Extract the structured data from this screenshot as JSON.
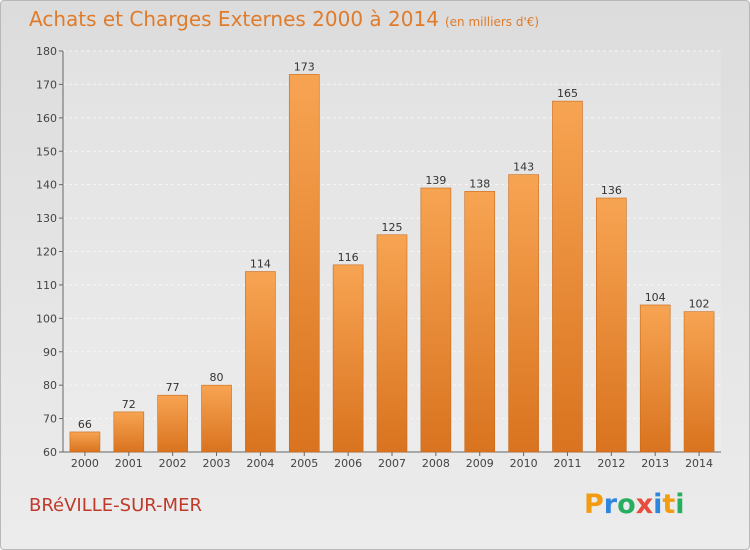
{
  "header": {
    "title": "Achats et Charges Externes 2000 à 2014",
    "subtitle": "(en milliers d'€)"
  },
  "footer": {
    "location": "BRéVILLE-SUR-MER",
    "brand": "Proxiti",
    "brand_letters": [
      {
        "ch": "P",
        "color": "#f39c12"
      },
      {
        "ch": "r",
        "color": "#2e86de"
      },
      {
        "ch": "o",
        "color": "#27ae60"
      },
      {
        "ch": "x",
        "color": "#e74c3c"
      },
      {
        "ch": "i",
        "color": "#2e86de"
      },
      {
        "ch": "t",
        "color": "#f39c12"
      },
      {
        "ch": "i",
        "color": "#27ae60"
      }
    ]
  },
  "chart_data": {
    "type": "bar",
    "title": "Achats et Charges Externes 2000 à 2014",
    "subtitle": "(en milliers d'€)",
    "categories": [
      "2000",
      "2001",
      "2002",
      "2003",
      "2004",
      "2005",
      "2006",
      "2007",
      "2008",
      "2009",
      "2010",
      "2011",
      "2012",
      "2013",
      "2014"
    ],
    "values": [
      66,
      72,
      77,
      80,
      114,
      173,
      116,
      125,
      139,
      138,
      143,
      165,
      136,
      104,
      102
    ],
    "ylim": [
      60,
      180
    ],
    "yticks": [
      60,
      70,
      80,
      90,
      100,
      110,
      120,
      130,
      140,
      150,
      160,
      170,
      180
    ],
    "grid": true,
    "bar_color": "#f0963c",
    "xlabel": "",
    "ylabel": ""
  }
}
